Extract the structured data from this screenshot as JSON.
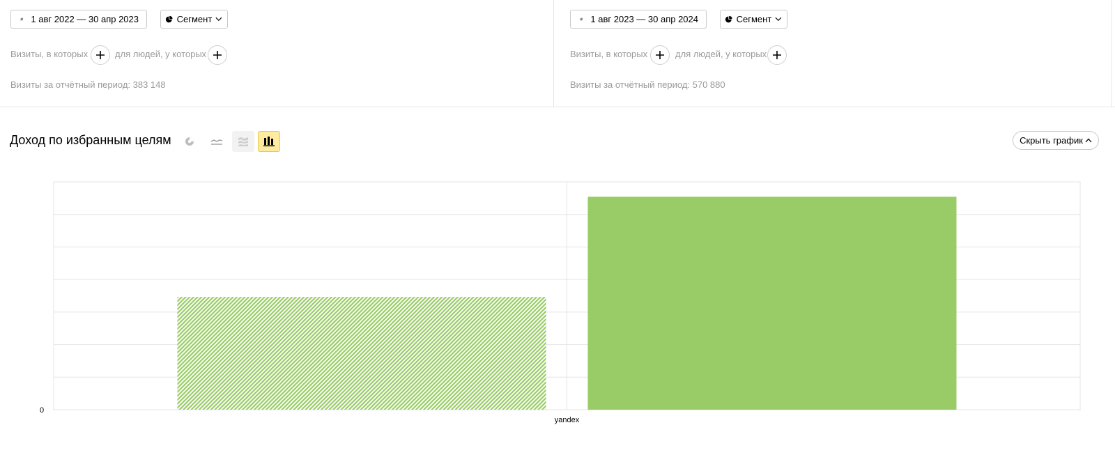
{
  "left_panel": {
    "date_range": "1 авг 2022 — 30 апр 2023",
    "segment_label": "Сегмент",
    "filter_visits": "Визиты, в которых",
    "filter_people": "для людей, у которых",
    "visits_total": "Визиты за отчётный период: 383 148"
  },
  "right_panel": {
    "date_range": "1 авг 2023 — 30 апр 2024",
    "segment_label": "Сегмент",
    "filter_visits": "Визиты, в которых",
    "filter_people": "для людей, у которых",
    "visits_total": "Визиты за отчётный период: 570 880"
  },
  "section": {
    "title": "Доход по избранным целям",
    "hide_chart_label": "Скрыть график",
    "chart_types": [
      {
        "icon": "pie-chart-icon",
        "active": false
      },
      {
        "icon": "line-chart-icon",
        "active": false
      },
      {
        "icon": "area-chart-icon",
        "active": false
      },
      {
        "icon": "bar-chart-icon",
        "active": true
      }
    ]
  },
  "colors": {
    "bar_current": "#99cc66",
    "bar_previous": "#99cc66",
    "grid": "#e5e5e5",
    "active_tool": "#ffeba0"
  },
  "chart_data": {
    "type": "bar",
    "categories": [
      "yandex"
    ],
    "series": [
      {
        "pattern": "hatched",
        "values": [
          0.53
        ]
      },
      {
        "pattern": "solid",
        "values": [
          1.0
        ]
      }
    ],
    "y_tick_labels": [
      "0"
    ],
    "ylim": [
      0,
      1.07
    ],
    "grid": true
  }
}
